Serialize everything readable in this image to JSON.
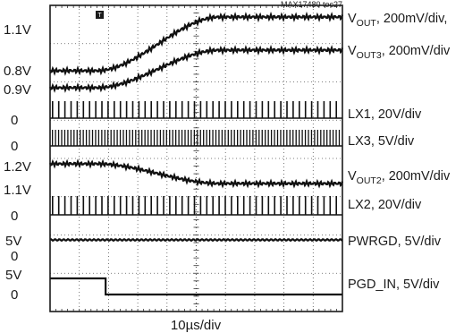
{
  "figure_id": "MAX17480 toc27",
  "time_base": "10µs/div",
  "chart_data": {
    "type": "line",
    "title": "",
    "x_axis": {
      "label": "10µs/div",
      "divisions": 10,
      "units_per_division_us": 10
    },
    "channels": [
      {
        "id": "vout",
        "name_main": "V",
        "name_sub": "OUT",
        "scale": ", 200mV/div,",
        "left_labels": [
          {
            "text": "1.1V",
            "level": "top"
          },
          {
            "text": "0.8V",
            "level": "bottom"
          }
        ]
      },
      {
        "id": "vout3",
        "name_main": "V",
        "name_sub": "OUT3",
        "scale": ", 200mV/div",
        "left_labels": [
          {
            "text": "0.9V",
            "level": "bottom"
          }
        ]
      },
      {
        "id": "lx1",
        "name_main": "LX1",
        "name_sub": "",
        "scale": ", 20V/div",
        "left_labels": [
          {
            "text": "0",
            "level": "baseline"
          }
        ]
      },
      {
        "id": "lx3",
        "name_main": "LX3",
        "name_sub": "",
        "scale": ", 5V/div",
        "left_labels": [
          {
            "text": "0",
            "level": "baseline"
          }
        ]
      },
      {
        "id": "vout2",
        "name_main": "V",
        "name_sub": "OUT2",
        "scale": ", 200mV/div",
        "left_labels": [
          {
            "text": "1.2V",
            "level": "top"
          },
          {
            "text": "1.1V",
            "level": "bottom"
          }
        ]
      },
      {
        "id": "lx2",
        "name_main": "LX2",
        "name_sub": "",
        "scale": ", 20V/div",
        "left_labels": [
          {
            "text": "0",
            "level": "baseline"
          }
        ]
      },
      {
        "id": "pwrgd",
        "name_main": "PWRGD",
        "name_sub": "",
        "scale": ", 5V/div",
        "left_labels": [
          {
            "text": "5V",
            "level": "high"
          },
          {
            "text": "0",
            "level": "baseline"
          }
        ]
      },
      {
        "id": "pgd_in",
        "name_main": "PGD_IN",
        "name_sub": "",
        "scale": ", 5V/div",
        "left_labels": [
          {
            "text": "5V",
            "level": "high"
          },
          {
            "text": "0",
            "level": "baseline"
          }
        ]
      }
    ],
    "events": {
      "pgd_in_falls_at_div": 1.9,
      "vout_ramp_start_div": 1.6,
      "vout_ramp_end_div": 5.8
    }
  }
}
